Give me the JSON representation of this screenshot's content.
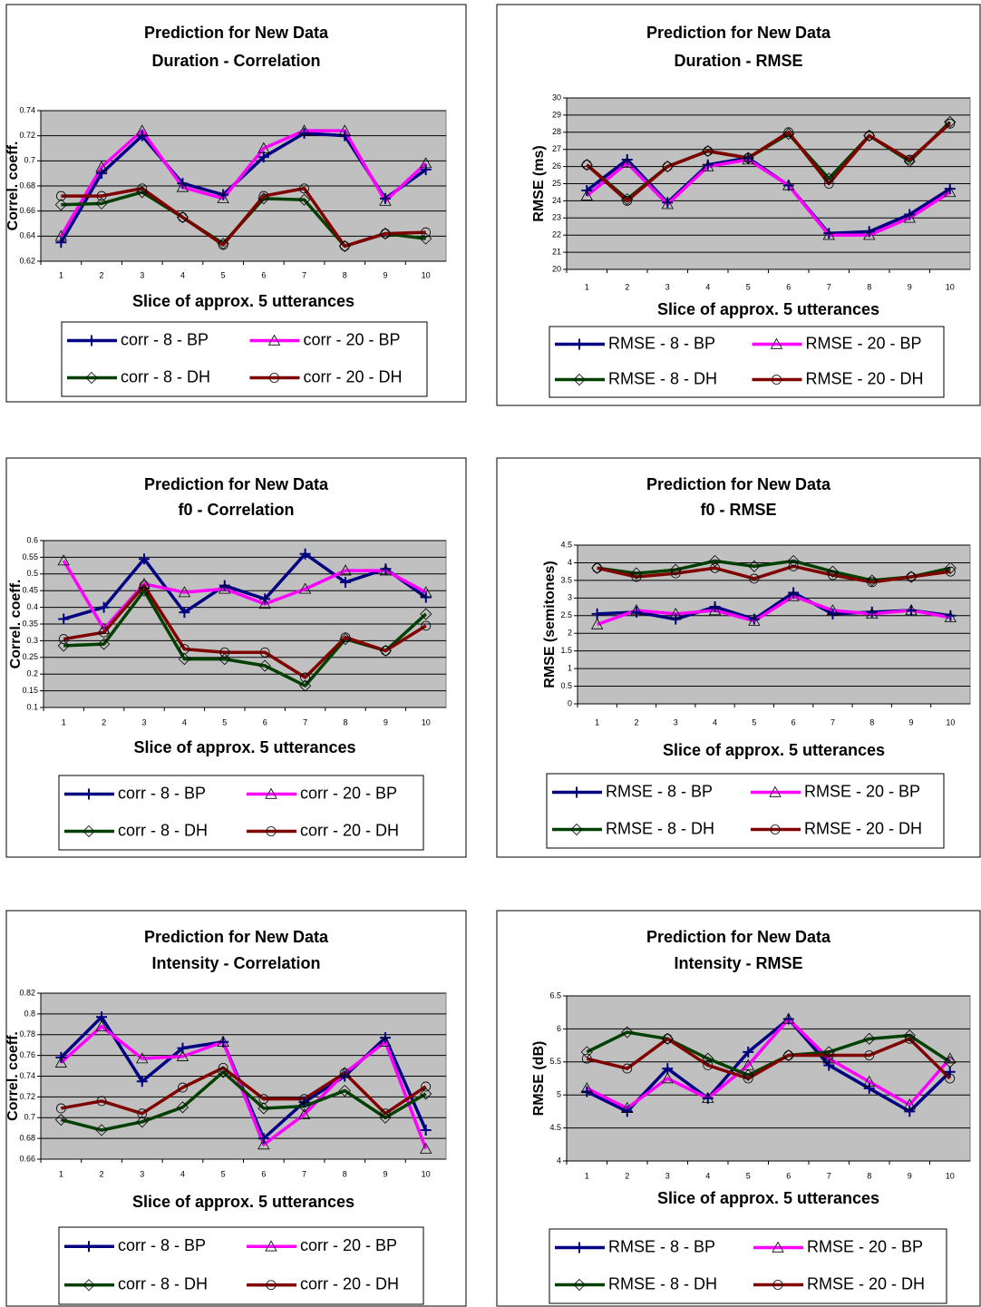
{
  "chart_data": [
    {
      "type": "line",
      "title": "Prediction for New Data",
      "subtitle": "Duration - Correlation",
      "y_label": "Correl. coeff.",
      "x_label": "Slice of approx. 5 utterances",
      "categories": [
        "1",
        "2",
        "3",
        "4",
        "5",
        "6",
        "7",
        "8",
        "9",
        "10"
      ],
      "ylim": [
        0.62,
        0.74
      ],
      "yticks": [
        0.62,
        0.64,
        0.66,
        0.68,
        0.7,
        0.72,
        0.74
      ],
      "grid": true,
      "series": [
        {
          "name": "corr - 8 - BP",
          "color": "#000080",
          "marker": "plus",
          "values": [
            0.635,
            0.69,
            0.72,
            0.682,
            0.673,
            0.703,
            0.722,
            0.72,
            0.67,
            0.693
          ]
        },
        {
          "name": "corr - 20 - BP",
          "color": "#ff00ff",
          "marker": "triangle",
          "values": [
            0.64,
            0.695,
            0.724,
            0.679,
            0.67,
            0.71,
            0.724,
            0.724,
            0.668,
            0.698
          ]
        },
        {
          "name": "corr - 8 - DH",
          "color": "#004000",
          "marker": "diamond",
          "values": [
            0.665,
            0.666,
            0.675,
            0.655,
            0.634,
            0.67,
            0.669,
            0.632,
            0.642,
            0.638
          ]
        },
        {
          "name": "corr - 20 - DH",
          "color": "#800000",
          "marker": "circle",
          "values": [
            0.672,
            0.672,
            0.678,
            0.655,
            0.633,
            0.672,
            0.678,
            0.632,
            0.642,
            0.643
          ]
        }
      ]
    },
    {
      "type": "line",
      "title": "Prediction for New Data",
      "subtitle": "Duration - RMSE",
      "y_label": "RMSE (ms)",
      "x_label": "Slice of approx. 5 utterances",
      "categories": [
        "1",
        "2",
        "3",
        "4",
        "5",
        "6",
        "7",
        "8",
        "9",
        "10"
      ],
      "ylim": [
        20,
        30
      ],
      "yticks": [
        20,
        21,
        22,
        23,
        24,
        25,
        26,
        27,
        28,
        29,
        30
      ],
      "grid": true,
      "series": [
        {
          "name": "RMSE - 8 - BP",
          "color": "#000080",
          "marker": "plus",
          "values": [
            24.6,
            26.4,
            23.9,
            26.1,
            26.5,
            24.9,
            22.1,
            22.2,
            23.2,
            24.7
          ]
        },
        {
          "name": "RMSE - 20 - BP",
          "color": "#ff00ff",
          "marker": "triangle",
          "values": [
            24.3,
            26.2,
            23.8,
            26.0,
            26.4,
            24.9,
            22.0,
            22.0,
            23.0,
            24.5
          ]
        },
        {
          "name": "RMSE - 8 - DH",
          "color": "#004000",
          "marker": "diamond",
          "values": [
            26.1,
            24.1,
            26.0,
            26.9,
            26.5,
            27.9,
            25.3,
            27.8,
            26.3,
            28.6
          ]
        },
        {
          "name": "RMSE - 20 - DH",
          "color": "#800000",
          "marker": "circle",
          "values": [
            26.1,
            24.0,
            26.0,
            26.9,
            26.5,
            28.0,
            25.0,
            27.8,
            26.4,
            28.5
          ]
        }
      ]
    },
    {
      "type": "line",
      "title": "Prediction for New Data",
      "subtitle": "f0 - Correlation",
      "y_label": "Correl. coeff.",
      "x_label": "Slice of approx. 5 utterances",
      "categories": [
        "1",
        "2",
        "3",
        "4",
        "5",
        "6",
        "7",
        "8",
        "9",
        "10"
      ],
      "ylim": [
        0.1,
        0.6
      ],
      "yticks": [
        0.1,
        0.15,
        0.2,
        0.25,
        0.3,
        0.35,
        0.4,
        0.45,
        0.5,
        0.55,
        0.6
      ],
      "grid": true,
      "series": [
        {
          "name": "corr - 8 - BP",
          "color": "#000080",
          "marker": "plus",
          "values": [
            0.365,
            0.4,
            0.545,
            0.385,
            0.465,
            0.425,
            0.56,
            0.475,
            0.515,
            0.43
          ]
        },
        {
          "name": "corr - 20 - BP",
          "color": "#ff00ff",
          "marker": "triangle",
          "values": [
            0.54,
            0.335,
            0.47,
            0.445,
            0.455,
            0.41,
            0.455,
            0.51,
            0.51,
            0.445
          ]
        },
        {
          "name": "corr - 8 - DH",
          "color": "#004000",
          "marker": "diamond",
          "values": [
            0.285,
            0.29,
            0.45,
            0.245,
            0.245,
            0.225,
            0.165,
            0.305,
            0.27,
            0.38
          ]
        },
        {
          "name": "corr - 20 - DH",
          "color": "#800000",
          "marker": "circle",
          "values": [
            0.305,
            0.325,
            0.465,
            0.275,
            0.265,
            0.265,
            0.19,
            0.31,
            0.27,
            0.345
          ]
        }
      ]
    },
    {
      "type": "line",
      "title": "Prediction for New Data",
      "subtitle": "f0 - RMSE",
      "y_label": "RMSE (semitones)",
      "x_label": "Slice of approx. 5 utterances",
      "categories": [
        "1",
        "2",
        "3",
        "4",
        "5",
        "6",
        "7",
        "8",
        "9",
        "10"
      ],
      "ylim": [
        0,
        4.5
      ],
      "yticks": [
        0,
        0.5,
        1,
        1.5,
        2,
        2.5,
        3,
        3.5,
        4,
        4.5
      ],
      "grid": true,
      "series": [
        {
          "name": "RMSE - 8 - BP",
          "color": "#000080",
          "marker": "plus",
          "values": [
            2.55,
            2.6,
            2.4,
            2.75,
            2.4,
            3.15,
            2.55,
            2.6,
            2.65,
            2.5
          ]
        },
        {
          "name": "RMSE - 20 - BP",
          "color": "#ff00ff",
          "marker": "triangle",
          "values": [
            2.25,
            2.65,
            2.55,
            2.65,
            2.35,
            3.05,
            2.65,
            2.55,
            2.65,
            2.45
          ]
        },
        {
          "name": "RMSE - 8 - DH",
          "color": "#004000",
          "marker": "diamond",
          "values": [
            3.85,
            3.7,
            3.8,
            4.05,
            3.9,
            4.05,
            3.75,
            3.5,
            3.6,
            3.85
          ]
        },
        {
          "name": "RMSE - 20 - DH",
          "color": "#800000",
          "marker": "circle",
          "values": [
            3.85,
            3.6,
            3.7,
            3.85,
            3.55,
            3.9,
            3.65,
            3.45,
            3.6,
            3.75
          ]
        }
      ]
    },
    {
      "type": "line",
      "title": "Prediction for New Data",
      "subtitle": "Intensity - Correlation",
      "y_label": "Correl. coeff.",
      "x_label": "Slice of approx. 5 utterances",
      "categories": [
        "1",
        "2",
        "3",
        "4",
        "5",
        "6",
        "7",
        "8",
        "9",
        "10"
      ],
      "ylim": [
        0.66,
        0.82
      ],
      "yticks": [
        0.66,
        0.68,
        0.7,
        0.72,
        0.74,
        0.76,
        0.78,
        0.8,
        0.82
      ],
      "grid": true,
      "series": [
        {
          "name": "corr - 8 - BP",
          "color": "#000080",
          "marker": "plus",
          "values": [
            0.758,
            0.797,
            0.735,
            0.767,
            0.773,
            0.68,
            0.715,
            0.74,
            0.777,
            0.688
          ]
        },
        {
          "name": "corr - 20 - BP",
          "color": "#ff00ff",
          "marker": "triangle",
          "values": [
            0.753,
            0.788,
            0.757,
            0.759,
            0.773,
            0.674,
            0.703,
            0.743,
            0.773,
            0.67
          ]
        },
        {
          "name": "corr - 8 - DH",
          "color": "#004000",
          "marker": "diamond",
          "values": [
            0.698,
            0.688,
            0.696,
            0.71,
            0.744,
            0.709,
            0.711,
            0.726,
            0.7,
            0.723
          ]
        },
        {
          "name": "corr - 20 - DH",
          "color": "#800000",
          "marker": "circle",
          "values": [
            0.709,
            0.716,
            0.704,
            0.729,
            0.748,
            0.718,
            0.718,
            0.743,
            0.704,
            0.73
          ]
        }
      ]
    },
    {
      "type": "line",
      "title": "Prediction for New Data",
      "subtitle": "Intensity - RMSE",
      "y_label": "RMSE (dB)",
      "x_label": "Slice of approx. 5 utterances",
      "categories": [
        "1",
        "2",
        "3",
        "4",
        "5",
        "6",
        "7",
        "8",
        "9",
        "10"
      ],
      "ylim": [
        4,
        6.5
      ],
      "yticks": [
        4,
        4.5,
        5,
        5.5,
        6,
        6.5
      ],
      "grid": true,
      "series": [
        {
          "name": "RMSE - 8 - BP",
          "color": "#000080",
          "marker": "plus",
          "values": [
            5.05,
            4.75,
            5.4,
            4.95,
            5.65,
            6.15,
            5.45,
            5.1,
            4.75,
            5.35
          ]
        },
        {
          "name": "RMSE - 20 - BP",
          "color": "#ff00ff",
          "marker": "triangle",
          "values": [
            5.1,
            4.8,
            5.25,
            4.95,
            5.45,
            6.15,
            5.55,
            5.2,
            4.85,
            5.55
          ]
        },
        {
          "name": "RMSE - 8 - DH",
          "color": "#004000",
          "marker": "diamond",
          "values": [
            5.65,
            5.95,
            5.85,
            5.55,
            5.3,
            5.6,
            5.65,
            5.85,
            5.9,
            5.5
          ]
        },
        {
          "name": "RMSE - 20 - DH",
          "color": "#800000",
          "marker": "circle",
          "values": [
            5.55,
            5.4,
            5.85,
            5.45,
            5.25,
            5.6,
            5.6,
            5.6,
            5.85,
            5.25
          ]
        }
      ]
    }
  ]
}
